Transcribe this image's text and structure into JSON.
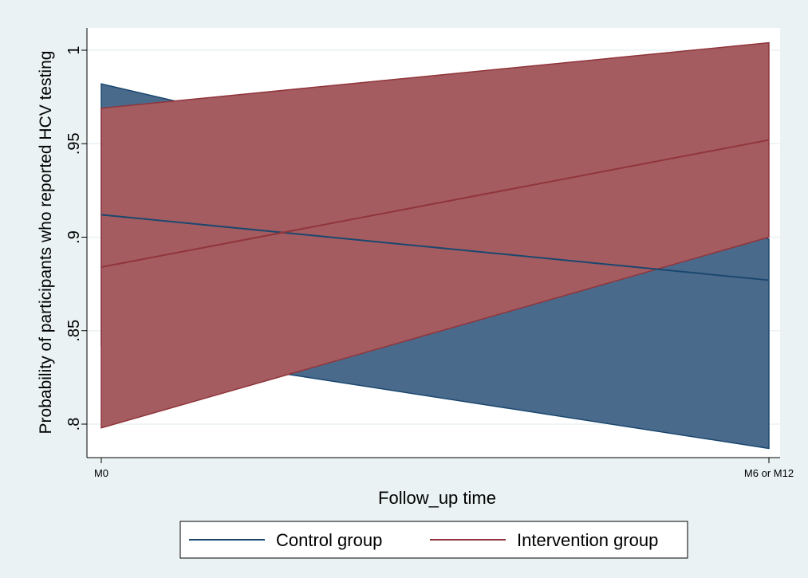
{
  "chart_data": {
    "type": "line",
    "categories": [
      "M0",
      "M6 or M12"
    ],
    "xlabel": "Follow_up time",
    "ylabel": "Probability of participants who reported HCV testing",
    "ylim": [
      0.78,
      1.01
    ],
    "yticks": [
      {
        "value": 0.8,
        "label": ".8"
      },
      {
        "value": 0.85,
        "label": ".85"
      },
      {
        "value": 0.9,
        "label": ".9"
      },
      {
        "value": 0.95,
        "label": ".95"
      },
      {
        "value": 1.0,
        "label": "1"
      }
    ],
    "grid": true,
    "legend_position": "bottom",
    "series": [
      {
        "name": "Control group",
        "values": [
          0.912,
          0.877
        ],
        "lower": [
          0.842,
          0.787
        ],
        "upper": [
          0.982,
          0.899
        ],
        "line_color": "#1a476f",
        "band_color": "#4a6a8c"
      },
      {
        "name": "Intervention group",
        "values": [
          0.884,
          0.952
        ],
        "lower": [
          0.798,
          0.9
        ],
        "upper": [
          0.969,
          1.004
        ],
        "line_color": "#90353b",
        "band_color": "#a45c60"
      }
    ]
  }
}
